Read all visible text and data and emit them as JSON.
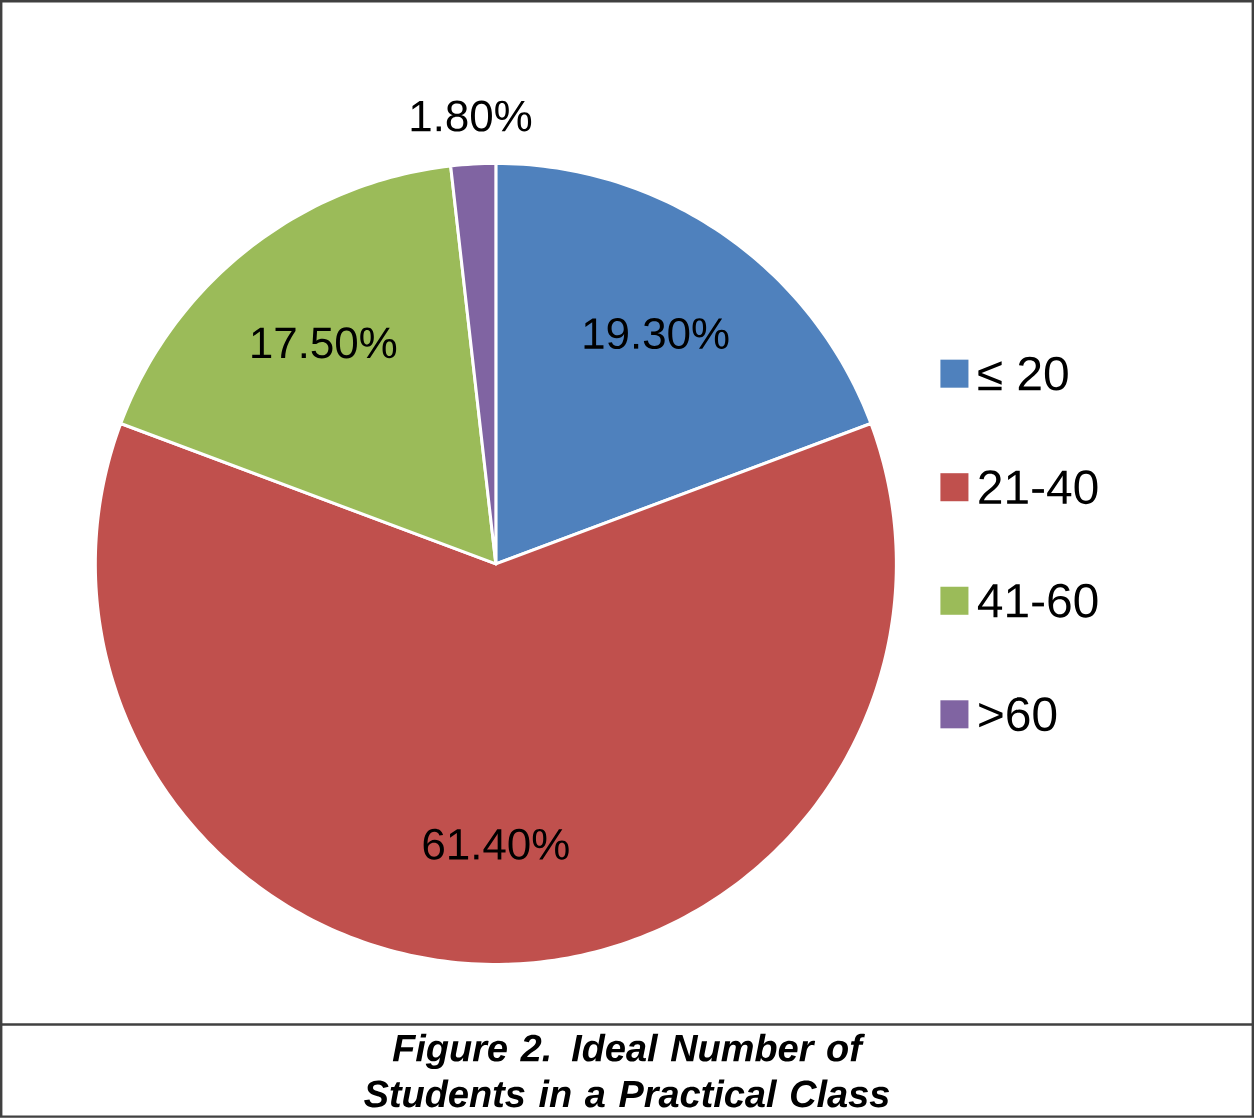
{
  "chart_data": {
    "type": "pie",
    "title": "Figure 2. Ideal Number of Students in a Practical Class",
    "categories": [
      "≤ 20",
      "21-40",
      "41-60",
      ">60"
    ],
    "values": [
      19.3,
      61.4,
      17.5,
      1.8
    ],
    "value_labels": [
      "19.30%",
      "61.40%",
      "17.50%",
      "1.80%"
    ],
    "colors": [
      "#4f81bd",
      "#c0504d",
      "#9bbb59",
      "#8064a2"
    ],
    "legend": "right"
  }
}
